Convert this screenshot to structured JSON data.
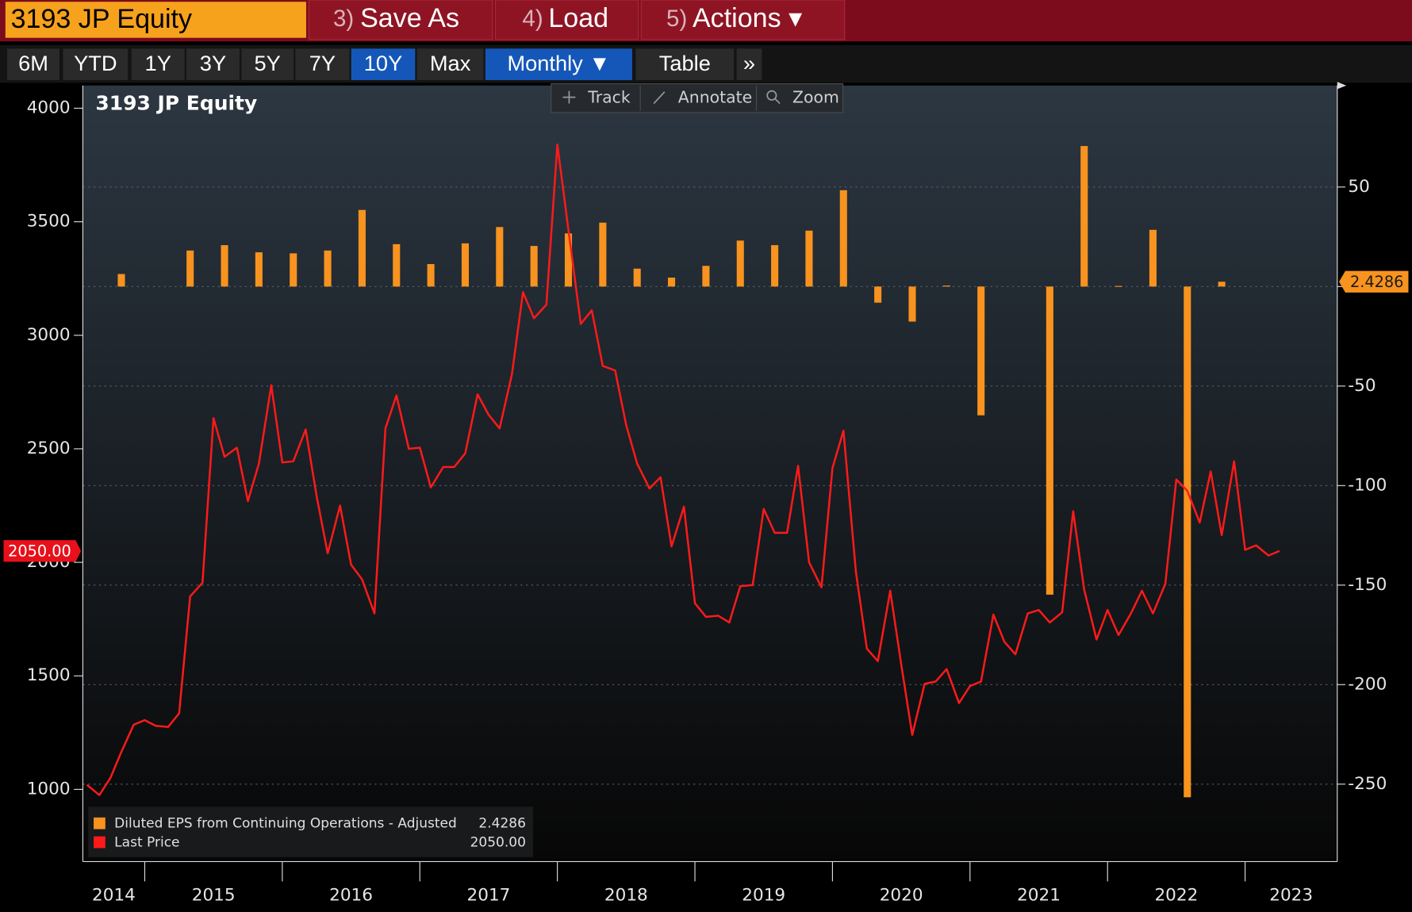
{
  "toolbar": {
    "ticker": "3193 JP Equity",
    "buttons": [
      {
        "key": "3)",
        "label": "Save As"
      },
      {
        "key": "4)",
        "label": "Load"
      },
      {
        "key": "5)",
        "label": "Actions ▾"
      }
    ]
  },
  "tabs": [
    "6M",
    "YTD",
    "1Y",
    "3Y",
    "5Y",
    "7Y",
    "10Y",
    "Max",
    "Monthly ▼",
    "Table",
    "»"
  ],
  "active_tabs": [
    6,
    8
  ],
  "chart_tools": [
    "Track",
    "Annotate",
    "Zoom"
  ],
  "chart_data": {
    "type": "combo",
    "title": "3193 JP Equity",
    "xlim": [
      2014.55,
      2023.67
    ],
    "xticks": [
      2015,
      2016,
      2017,
      2018,
      2019,
      2020,
      2021,
      2022,
      2023
    ],
    "year_labels": [
      "2014",
      "2015",
      "2016",
      "2017",
      "2018",
      "2019",
      "2020",
      "2021",
      "2022",
      "2023"
    ],
    "ylim": [
      690,
      4100
    ],
    "yticks": [
      1000,
      1500,
      2000,
      2500,
      3000,
      3500,
      4000
    ],
    "y2lim": [
      -288,
      101
    ],
    "y2ticks": [
      50,
      0,
      -50,
      -100,
      -150,
      -200,
      -250
    ],
    "grid": true,
    "series": [
      {
        "name": "Diluted EPS from Continuing Operations - Adjusted",
        "type": "bar",
        "axis": "y2",
        "color": "#f7931e",
        "last_label": "2.4286",
        "x": [
          2014.83,
          2015.33,
          2015.58,
          2015.83,
          2016.08,
          2016.33,
          2016.58,
          2016.83,
          2017.08,
          2017.33,
          2017.58,
          2017.83,
          2018.08,
          2018.33,
          2018.58,
          2018.83,
          2019.08,
          2019.33,
          2019.58,
          2019.83,
          2020.08,
          2020.33,
          2020.58,
          2020.83,
          2021.08,
          2021.58,
          2021.83,
          2022.08,
          2022.33,
          2022.58,
          2022.83
        ],
        "values": [
          6.3,
          18.1,
          20.8,
          17.2,
          16.7,
          18.1,
          38.5,
          21.3,
          11.3,
          21.7,
          29.9,
          20.4,
          26.7,
          32.1,
          9.0,
          4.5,
          10.4,
          23.1,
          20.8,
          28.1,
          48.4,
          -8.1,
          -17.6,
          0.5,
          -64.7,
          -154.8,
          70.6,
          0.3,
          28.5,
          -256.6,
          2.4286
        ]
      },
      {
        "name": "Last Price",
        "type": "line",
        "axis": "y",
        "color": "#ff1a1a",
        "last_label": "2050.00",
        "x": [
          2014.58,
          2014.67,
          2014.75,
          2014.83,
          2014.92,
          2015,
          2015.08,
          2015.17,
          2015.25,
          2015.33,
          2015.42,
          2015.5,
          2015.58,
          2015.67,
          2015.75,
          2015.83,
          2015.92,
          2016,
          2016.08,
          2016.17,
          2016.25,
          2016.33,
          2016.42,
          2016.5,
          2016.58,
          2016.67,
          2016.75,
          2016.83,
          2016.92,
          2017,
          2017.08,
          2017.17,
          2017.25,
          2017.33,
          2017.42,
          2017.5,
          2017.58,
          2017.67,
          2017.75,
          2017.83,
          2017.92,
          2018,
          2018.08,
          2018.17,
          2018.25,
          2018.33,
          2018.42,
          2018.5,
          2018.58,
          2018.67,
          2018.75,
          2018.83,
          2018.92,
          2019,
          2019.08,
          2019.17,
          2019.25,
          2019.33,
          2019.42,
          2019.5,
          2019.58,
          2019.67,
          2019.75,
          2019.83,
          2019.92,
          2020,
          2020.08,
          2020.17,
          2020.25,
          2020.33,
          2020.42,
          2020.5,
          2020.58,
          2020.67,
          2020.75,
          2020.83,
          2020.92,
          2021,
          2021.08,
          2021.17,
          2021.25,
          2021.33,
          2021.42,
          2021.5,
          2021.58,
          2021.67,
          2021.75,
          2021.83,
          2021.92,
          2022,
          2022.08,
          2022.17,
          2022.25,
          2022.33,
          2022.42,
          2022.5,
          2022.58,
          2022.67,
          2022.75,
          2022.83,
          2022.92,
          2023,
          2023.08,
          2023.17,
          2023.25
        ],
        "values": [
          1020,
          975,
          1050,
          1165,
          1285,
          1305,
          1280,
          1275,
          1335,
          1850,
          1910,
          2635,
          2465,
          2505,
          2270,
          2435,
          2780,
          2440,
          2445,
          2585,
          2290,
          2040,
          2250,
          1990,
          1925,
          1775,
          2590,
          2735,
          2500,
          2505,
          2330,
          2420,
          2420,
          2480,
          2740,
          2650,
          2590,
          2830,
          3190,
          3075,
          3135,
          3840,
          3465,
          3050,
          3110,
          2865,
          2845,
          2605,
          2435,
          2325,
          2375,
          2070,
          2245,
          1820,
          1760,
          1765,
          1735,
          1895,
          1900,
          2235,
          2130,
          2130,
          2425,
          2000,
          1890,
          2415,
          2580,
          1960,
          1620,
          1565,
          1875,
          1550,
          1240,
          1465,
          1475,
          1530,
          1380,
          1455,
          1475,
          1770,
          1650,
          1595,
          1775,
          1790,
          1735,
          1780,
          2225,
          1880,
          1660,
          1790,
          1680,
          1775,
          1875,
          1775,
          1905,
          2365,
          2315,
          2175,
          2400,
          2120,
          2445,
          2055,
          2075,
          2030,
          2050
        ]
      }
    ]
  }
}
